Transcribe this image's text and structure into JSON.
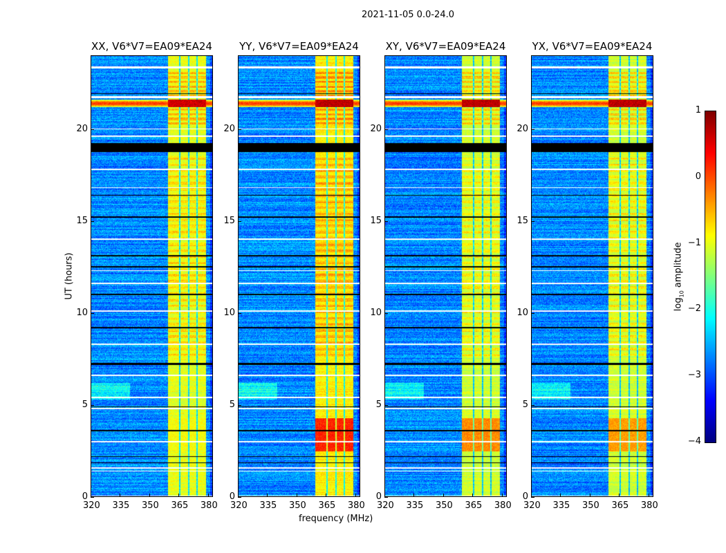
{
  "chart_data": {
    "type": "heatmap",
    "title": "2021-11-05 0.0-24.0",
    "xlabel": "frequency (MHz)",
    "ylabel": "UT (hours)",
    "xlim": [
      320,
      382.5
    ],
    "ylim": [
      0,
      24
    ],
    "xticks": [
      "320",
      "335",
      "350",
      "365",
      "380"
    ],
    "xtick_values": [
      320,
      335,
      350,
      365,
      380
    ],
    "yticks": [
      "0",
      "5",
      "10",
      "15",
      "20"
    ],
    "ytick_values": [
      0,
      5,
      10,
      15,
      20
    ],
    "panels": [
      {
        "title": "XX, V6*V7=EA09*EA24",
        "band_level": -1.0,
        "burst_level": -0.9,
        "flare_level": 0.6
      },
      {
        "title": "YY, V6*V7=EA09*EA24",
        "band_level": -0.8,
        "burst_level": 0.2,
        "flare_level": 0.7
      },
      {
        "title": "XY, V6*V7=EA09*EA24",
        "band_level": -1.1,
        "burst_level": -0.3,
        "flare_level": 0.7
      },
      {
        "title": "YX, V6*V7=EA09*EA24",
        "band_level": -1.1,
        "burst_level": -0.4,
        "flare_level": 0.7
      }
    ],
    "band_mhz": [
      359.5,
      378.8
    ],
    "band_gaps_mhz": [
      365.5,
      370,
      374.3
    ],
    "flagged_black_hours": [
      [
        18.75,
        19.25
      ],
      [
        21.9,
        21.95
      ],
      [
        13.1,
        13.15
      ],
      [
        12.5,
        12.55
      ],
      [
        7.2,
        7.3
      ],
      [
        3.6,
        3.65
      ],
      [
        2.2,
        2.25
      ],
      [
        1.85,
        1.9
      ],
      [
        11.0,
        11.05
      ],
      [
        9.2,
        9.25
      ],
      [
        16.4,
        16.45
      ],
      [
        15.2,
        15.25
      ],
      [
        4.9,
        4.95
      ]
    ],
    "flagged_white_hours": [
      [
        23.3,
        23.4
      ],
      [
        21.7,
        21.8
      ],
      [
        20.0,
        20.05
      ],
      [
        19.6,
        19.65
      ],
      [
        17.8,
        17.85
      ],
      [
        16.8,
        16.85
      ],
      [
        14.0,
        14.05
      ],
      [
        12.3,
        12.35
      ],
      [
        11.6,
        11.65
      ],
      [
        10.1,
        10.15
      ],
      [
        8.3,
        8.35
      ],
      [
        6.6,
        6.65
      ],
      [
        5.4,
        5.48
      ],
      [
        4.8,
        4.85
      ],
      [
        3.0,
        3.05
      ],
      [
        1.55,
        1.62
      ],
      [
        1.4,
        1.45
      ],
      [
        0.05,
        0.1
      ]
    ],
    "colorbar": {
      "label": "log10 amplitude",
      "ticks": [
        "1",
        "0",
        "−1",
        "−2",
        "−3",
        "−4"
      ],
      "tick_values": [
        1,
        0,
        -1,
        -2,
        -3,
        -4
      ],
      "range": [
        -4,
        1
      ],
      "colormap": "jet"
    }
  }
}
